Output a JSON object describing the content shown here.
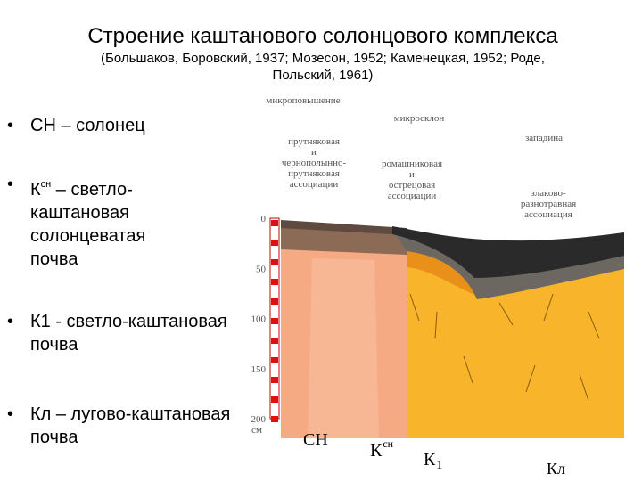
{
  "header": {
    "title": "Строение каштанового солонцового комплекса",
    "subtitle": [
      "(Большаков, Боровский, 1937; Мозесон, 1952; Каменецкая, 1952; Роде,",
      "Польский, 1961)"
    ]
  },
  "bullets": [
    {
      "text": "СН – солонец"
    },
    {
      "text": "К",
      "sup": "сн",
      "rest": " – светло-каштановая солонцеватая почва"
    },
    {
      "text": "К1 - светло-каштановая почва"
    },
    {
      "text": "Кл – лугово-каштановая почва"
    }
  ],
  "figure": {
    "relief": [
      {
        "label": "микроповышение"
      },
      {
        "label": "микросклон"
      },
      {
        "label": "западина"
      }
    ],
    "associations": [
      {
        "lines": [
          "прутняковая",
          "и",
          "чернополынно-",
          "прутняковая",
          "ассоциации"
        ]
      },
      {
        "lines": [
          "ромашниковая",
          "и",
          "острецовая",
          "ассоциации"
        ]
      },
      {
        "lines": [
          "злаково-",
          "разнотравная",
          "ассоциация"
        ]
      }
    ],
    "depth_ticks": [
      0,
      50,
      100,
      150,
      200
    ],
    "depth_unit": "см",
    "soils": [
      {
        "main": "СН"
      },
      {
        "main": "К",
        "sup": "сн"
      },
      {
        "main": "К",
        "sub": "1"
      },
      {
        "main": "Кл"
      }
    ]
  }
}
